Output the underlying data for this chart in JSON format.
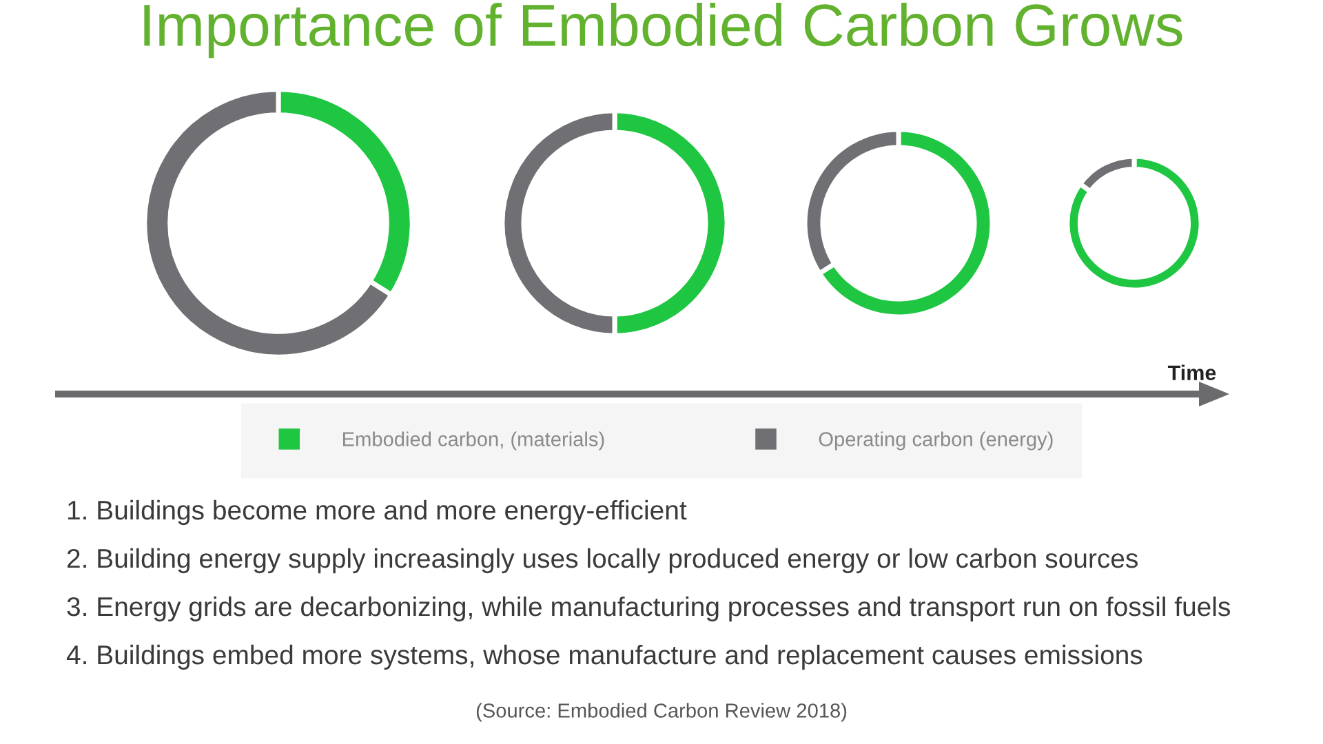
{
  "chart_data": [
    {
      "type": "donut",
      "title": "Importance of Embodied Carbon Grows",
      "categories": [
        "Embodied carbon, (materials)",
        "Operating carbon (energy)"
      ],
      "values": [
        34,
        66
      ],
      "colors": [
        "#1ec641",
        "#707074"
      ],
      "legend": "bottom"
    },
    {
      "type": "donut",
      "categories": [
        null,
        null
      ],
      "values": [
        50,
        50
      ],
      "colors": [
        "#1ec641",
        "#707074"
      ]
    },
    {
      "type": "donut",
      "categories": [
        null,
        null
      ],
      "values": [
        66,
        34
      ],
      "colors": [
        "#1ec641",
        "#707074"
      ]
    },
    {
      "type": "donut",
      "categories": [
        null,
        null
      ],
      "values": [
        85,
        15
      ],
      "colors": [
        "#1ec641",
        "#707074"
      ],
      "xlabel": "Time",
      "annotations": [
        "1. Buildings become more and more energy-efficient",
        "2. Building energy supply increasingly uses locally produced energy or low carbon sources",
        "3. Energy grids are decarbonizing, while manufacturing processes and transport run on fossil fuels",
        "4. Buildings embed more systems, whose manufacture and replacement causes emissions",
        "(Source: Embodied Carbon Review 2018)"
      ]
    }
  ]
}
